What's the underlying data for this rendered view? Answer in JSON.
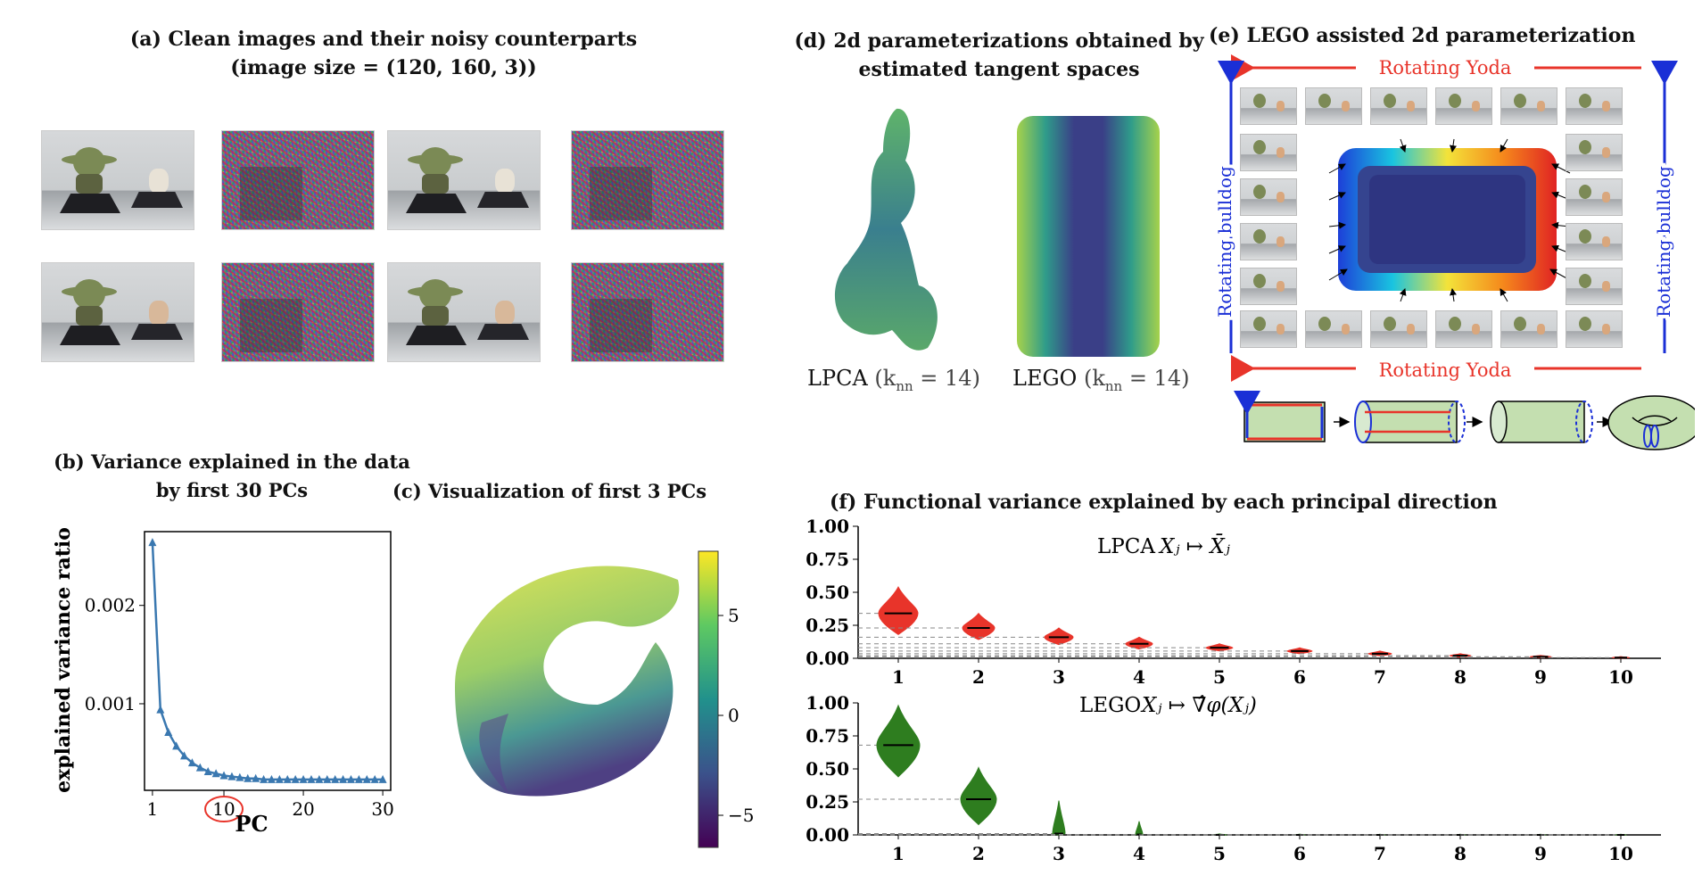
{
  "panel_a": {
    "title_line1": "(a) Clean images and their noisy counterparts",
    "title_line2": "(image size = (120, 160, 3))"
  },
  "panel_b": {
    "title_line1": "(b) Variance explained in the data",
    "title_line2": "by first 30 PCs"
  },
  "panel_c": {
    "title": "(c)  Visualization of first 3 PCs",
    "colorbar_ticks": [
      "5",
      "0",
      "−5"
    ]
  },
  "panel_d": {
    "title_line1": "(d) 2d parameterizations obtained by",
    "title_line2": "estimated tangent spaces",
    "label_lpca": "LPCA",
    "label_lego": "LEGO",
    "knn_label": "(k",
    "knn_sub": "nn",
    "knn_eq": " = 14)"
  },
  "panel_e": {
    "title": "(e)  LEGO assisted 2d parameterization",
    "top_label": "Rotating Yoda",
    "bottom_label": "Rotating Yoda",
    "left_label": "Rotating bulldog",
    "right_label": "Rotating bulldog"
  },
  "panel_f": {
    "title": "(f)  Functional variance explained by each principal direction",
    "top_label_prefix": "LPCA",
    "top_label_math": "Xⱼ ↦ X̄ⱼ",
    "bottom_label_prefix": "LEGO",
    "bottom_label_math": "Xⱼ ↦ ∇̂φ(Xⱼ)"
  },
  "colors": {
    "line_blue": "#3a78b0",
    "lpca_red": "#e8342a",
    "lego_green": "#2e7d1f",
    "arrow_red": "#e8342a",
    "arrow_blue": "#1a2fd6"
  },
  "chart_data": [
    {
      "id": "b",
      "type": "line",
      "title": "Variance explained in the data by first 30 PCs",
      "xlabel": "PC",
      "ylabel": "explained variance ratio",
      "xticks": [
        "1",
        "10",
        "20",
        "30"
      ],
      "yticks": [
        "0.001",
        "0.002"
      ],
      "xlim": [
        0,
        31
      ],
      "ylim": [
        0.00012,
        0.00275
      ],
      "x": [
        1,
        2,
        3,
        4,
        5,
        6,
        7,
        8,
        9,
        10,
        11,
        12,
        13,
        14,
        15,
        16,
        17,
        18,
        19,
        20,
        21,
        22,
        23,
        24,
        25,
        26,
        27,
        28,
        29,
        30
      ],
      "values": [
        0.00264,
        0.00094,
        0.00071,
        0.00057,
        0.00047,
        0.0004,
        0.00035,
        0.00031,
        0.00029,
        0.00027,
        0.00026,
        0.00025,
        0.00024,
        0.00024,
        0.00023,
        0.00023,
        0.00023,
        0.00023,
        0.00023,
        0.00023,
        0.00023,
        0.00023,
        0.00023,
        0.00023,
        0.00023,
        0.00023,
        0.00023,
        0.00023,
        0.00023,
        0.00023
      ],
      "highlight_tick": "10"
    },
    {
      "id": "f-top",
      "type": "violin",
      "title": "LPCA",
      "categories": [
        "1",
        "2",
        "3",
        "4",
        "5",
        "6",
        "7",
        "8",
        "9",
        "10"
      ],
      "values": [
        0.34,
        0.23,
        0.16,
        0.11,
        0.08,
        0.055,
        0.035,
        0.02,
        0.012,
        0.005
      ],
      "ylim": [
        0,
        1
      ],
      "yticks": [
        "0.00",
        "0.25",
        "0.50",
        "0.75",
        "1.00"
      ]
    },
    {
      "id": "f-bottom",
      "type": "violin",
      "title": "LEGO",
      "categories": [
        "1",
        "2",
        "3",
        "4",
        "5",
        "6",
        "7",
        "8",
        "9",
        "10"
      ],
      "values": [
        0.68,
        0.27,
        0.01,
        0.003,
        0,
        0,
        0,
        0,
        0,
        0
      ],
      "ylim": [
        0,
        1
      ],
      "yticks": [
        "0.00",
        "0.25",
        "0.50",
        "0.75",
        "1.00"
      ]
    }
  ]
}
